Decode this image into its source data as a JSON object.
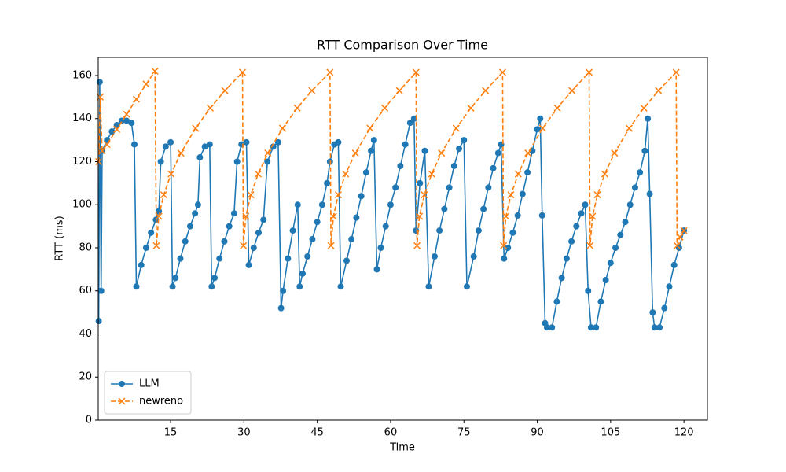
{
  "chart_data": {
    "type": "line",
    "title": "RTT Comparison Over Time",
    "x_label": "Time",
    "y_label": "RTT (ms)",
    "xlim": [
      0.2,
      124.8
    ],
    "ylim": [
      0,
      168.4
    ],
    "xticks": [
      15,
      30,
      45,
      60,
      75,
      90,
      105,
      120
    ],
    "yticks": [
      0,
      20,
      40,
      60,
      80,
      100,
      120,
      140,
      160
    ],
    "legend": "lower left",
    "series": [
      {
        "name": "LLM",
        "color": "#1f77b4",
        "marker": "o",
        "linestyle": "solid",
        "x": [
          0.3,
          0.5,
          0.8,
          1.0,
          2,
          3,
          4,
          5,
          6,
          7,
          7.6,
          8.0,
          9,
          10,
          11,
          12,
          12.6,
          13,
          14,
          15,
          15.4,
          16,
          17,
          18,
          19,
          20,
          20.6,
          21,
          22,
          23,
          23.4,
          24,
          25,
          26,
          27,
          28,
          28.6,
          29.5,
          30.5,
          31,
          32,
          33,
          34,
          34.8,
          36,
          37,
          37.6,
          38,
          39,
          40,
          41,
          41.4,
          42,
          43,
          44,
          45,
          46,
          47,
          47.6,
          48.5,
          49.3,
          49.8,
          51,
          52,
          53,
          54,
          55,
          56,
          56.6,
          57.2,
          58,
          59,
          60,
          61,
          62,
          63,
          64,
          64.8,
          65.2,
          66,
          67,
          67.8,
          69,
          70,
          71,
          72,
          73,
          74,
          75,
          75.6,
          77,
          78,
          79,
          80,
          81,
          82,
          82.6,
          83.2,
          84,
          85,
          86,
          87,
          88,
          89,
          90,
          90.6,
          91,
          91.6,
          92,
          93,
          94,
          95,
          96,
          97,
          98,
          99,
          99.8,
          100.4,
          101,
          102,
          103,
          104,
          105,
          106,
          107,
          108,
          109,
          110,
          111,
          112,
          112.6,
          113,
          113.6,
          114,
          115,
          116,
          117,
          118,
          119,
          120
        ],
        "values": [
          46,
          157,
          60,
          125,
          130,
          134,
          137,
          139,
          139,
          138,
          128,
          62,
          72,
          80,
          87,
          93,
          97,
          120,
          127,
          129,
          62,
          66,
          75,
          83,
          90,
          96,
          100,
          122,
          127,
          128,
          62,
          66,
          75,
          83,
          90,
          96,
          120,
          128,
          129,
          72,
          80,
          87,
          93,
          120,
          127,
          129,
          52,
          60,
          75,
          88,
          100,
          62,
          68,
          76,
          84,
          92,
          100,
          110,
          120,
          128,
          129,
          62,
          74,
          84,
          94,
          104,
          115,
          125,
          130,
          70,
          80,
          90,
          100,
          108,
          118,
          128,
          138,
          140,
          88,
          110,
          125,
          62,
          76,
          88,
          98,
          108,
          118,
          126,
          130,
          62,
          76,
          88,
          98,
          108,
          117,
          124,
          128,
          75,
          80,
          87,
          95,
          105,
          115,
          125,
          135,
          140,
          95,
          45,
          43,
          43,
          55,
          66,
          75,
          83,
          90,
          96,
          100,
          60,
          43,
          43,
          55,
          65,
          73,
          80,
          86,
          92,
          100,
          108,
          115,
          125,
          140,
          105,
          50,
          43,
          43,
          52,
          62,
          72,
          80,
          88
        ]
      },
      {
        "name": "newreno",
        "color": "#ff7f0e",
        "marker": "x",
        "linestyle": "dashed",
        "x": [
          0.3,
          0.6,
          1.0,
          2,
          4,
          6,
          8,
          10,
          11.8,
          12.1,
          12.6,
          13.6,
          15.1,
          17.1,
          20.1,
          23.1,
          26.1,
          29.7,
          29.9,
          30.4,
          31.4,
          32.9,
          34.9,
          37.9,
          40.9,
          43.9,
          47.6,
          47.8,
          48.3,
          49.3,
          50.8,
          52.8,
          55.8,
          58.8,
          61.8,
          65.2,
          65.4,
          65.9,
          66.9,
          68.4,
          70.4,
          73.4,
          76.4,
          79.4,
          82.9,
          83.1,
          83.6,
          84.6,
          86.1,
          88.1,
          91.1,
          94.1,
          97.1,
          100.6,
          100.8,
          101.3,
          102.3,
          103.8,
          105.8,
          108.8,
          111.8,
          114.8,
          118.4,
          118.6,
          119.2,
          120
        ],
        "values": [
          120,
          150,
          125,
          128,
          135,
          142,
          149,
          156,
          162,
          81,
          94.6,
          104.6,
          114.3,
          124,
          135.5,
          144.9,
          153,
          161.5,
          81,
          94.6,
          104.6,
          114.3,
          124,
          135.5,
          144.9,
          153,
          161.5,
          81,
          94.6,
          104.6,
          114.3,
          124,
          135.5,
          144.9,
          153,
          161.5,
          81,
          94.6,
          104.6,
          114.3,
          124,
          135.5,
          144.9,
          153,
          161.5,
          81,
          94.6,
          104.6,
          114.3,
          124,
          135.5,
          144.9,
          153,
          161.5,
          81,
          94.6,
          104.6,
          114.3,
          124,
          135.5,
          144.9,
          153,
          161.5,
          81,
          85,
          88
        ]
      }
    ]
  }
}
